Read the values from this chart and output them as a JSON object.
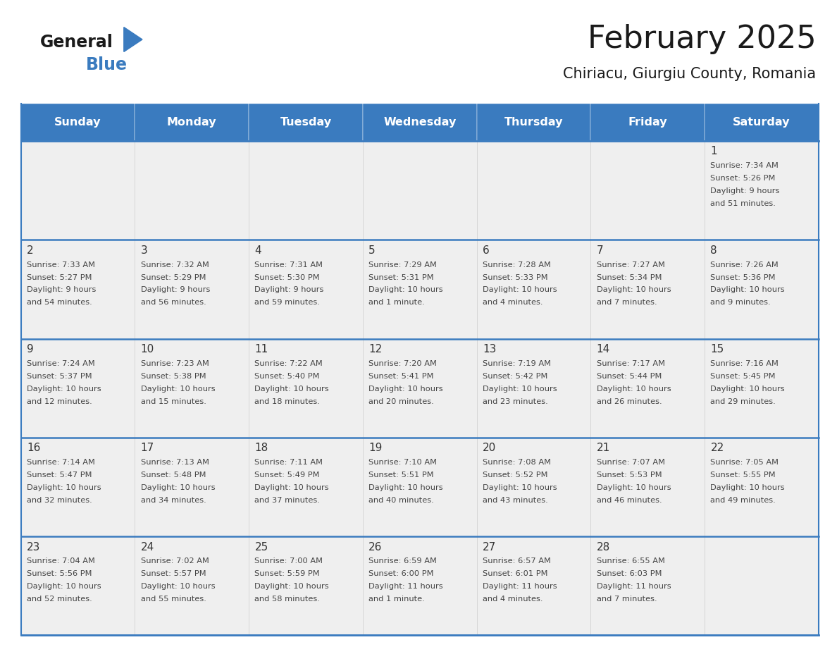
{
  "title": "February 2025",
  "subtitle": "Chiriacu, Giurgiu County, Romania",
  "header_color": "#3A7BBF",
  "header_text_color": "#FFFFFF",
  "cell_bg_color": "#EFEFEF",
  "border_color": "#3A7BBF",
  "title_color": "#1a1a1a",
  "subtitle_color": "#1a1a1a",
  "days_of_week": [
    "Sunday",
    "Monday",
    "Tuesday",
    "Wednesday",
    "Thursday",
    "Friday",
    "Saturday"
  ],
  "calendar_data": [
    [
      null,
      null,
      null,
      null,
      null,
      null,
      {
        "day": 1,
        "sunrise": "7:34 AM",
        "sunset": "5:26 PM",
        "daylight_line1": "9 hours",
        "daylight_line2": "and 51 minutes."
      }
    ],
    [
      {
        "day": 2,
        "sunrise": "7:33 AM",
        "sunset": "5:27 PM",
        "daylight_line1": "9 hours",
        "daylight_line2": "and 54 minutes."
      },
      {
        "day": 3,
        "sunrise": "7:32 AM",
        "sunset": "5:29 PM",
        "daylight_line1": "9 hours",
        "daylight_line2": "and 56 minutes."
      },
      {
        "day": 4,
        "sunrise": "7:31 AM",
        "sunset": "5:30 PM",
        "daylight_line1": "9 hours",
        "daylight_line2": "and 59 minutes."
      },
      {
        "day": 5,
        "sunrise": "7:29 AM",
        "sunset": "5:31 PM",
        "daylight_line1": "10 hours",
        "daylight_line2": "and 1 minute."
      },
      {
        "day": 6,
        "sunrise": "7:28 AM",
        "sunset": "5:33 PM",
        "daylight_line1": "10 hours",
        "daylight_line2": "and 4 minutes."
      },
      {
        "day": 7,
        "sunrise": "7:27 AM",
        "sunset": "5:34 PM",
        "daylight_line1": "10 hours",
        "daylight_line2": "and 7 minutes."
      },
      {
        "day": 8,
        "sunrise": "7:26 AM",
        "sunset": "5:36 PM",
        "daylight_line1": "10 hours",
        "daylight_line2": "and 9 minutes."
      }
    ],
    [
      {
        "day": 9,
        "sunrise": "7:24 AM",
        "sunset": "5:37 PM",
        "daylight_line1": "10 hours",
        "daylight_line2": "and 12 minutes."
      },
      {
        "day": 10,
        "sunrise": "7:23 AM",
        "sunset": "5:38 PM",
        "daylight_line1": "10 hours",
        "daylight_line2": "and 15 minutes."
      },
      {
        "day": 11,
        "sunrise": "7:22 AM",
        "sunset": "5:40 PM",
        "daylight_line1": "10 hours",
        "daylight_line2": "and 18 minutes."
      },
      {
        "day": 12,
        "sunrise": "7:20 AM",
        "sunset": "5:41 PM",
        "daylight_line1": "10 hours",
        "daylight_line2": "and 20 minutes."
      },
      {
        "day": 13,
        "sunrise": "7:19 AM",
        "sunset": "5:42 PM",
        "daylight_line1": "10 hours",
        "daylight_line2": "and 23 minutes."
      },
      {
        "day": 14,
        "sunrise": "7:17 AM",
        "sunset": "5:44 PM",
        "daylight_line1": "10 hours",
        "daylight_line2": "and 26 minutes."
      },
      {
        "day": 15,
        "sunrise": "7:16 AM",
        "sunset": "5:45 PM",
        "daylight_line1": "10 hours",
        "daylight_line2": "and 29 minutes."
      }
    ],
    [
      {
        "day": 16,
        "sunrise": "7:14 AM",
        "sunset": "5:47 PM",
        "daylight_line1": "10 hours",
        "daylight_line2": "and 32 minutes."
      },
      {
        "day": 17,
        "sunrise": "7:13 AM",
        "sunset": "5:48 PM",
        "daylight_line1": "10 hours",
        "daylight_line2": "and 34 minutes."
      },
      {
        "day": 18,
        "sunrise": "7:11 AM",
        "sunset": "5:49 PM",
        "daylight_line1": "10 hours",
        "daylight_line2": "and 37 minutes."
      },
      {
        "day": 19,
        "sunrise": "7:10 AM",
        "sunset": "5:51 PM",
        "daylight_line1": "10 hours",
        "daylight_line2": "and 40 minutes."
      },
      {
        "day": 20,
        "sunrise": "7:08 AM",
        "sunset": "5:52 PM",
        "daylight_line1": "10 hours",
        "daylight_line2": "and 43 minutes."
      },
      {
        "day": 21,
        "sunrise": "7:07 AM",
        "sunset": "5:53 PM",
        "daylight_line1": "10 hours",
        "daylight_line2": "and 46 minutes."
      },
      {
        "day": 22,
        "sunrise": "7:05 AM",
        "sunset": "5:55 PM",
        "daylight_line1": "10 hours",
        "daylight_line2": "and 49 minutes."
      }
    ],
    [
      {
        "day": 23,
        "sunrise": "7:04 AM",
        "sunset": "5:56 PM",
        "daylight_line1": "10 hours",
        "daylight_line2": "and 52 minutes."
      },
      {
        "day": 24,
        "sunrise": "7:02 AM",
        "sunset": "5:57 PM",
        "daylight_line1": "10 hours",
        "daylight_line2": "and 55 minutes."
      },
      {
        "day": 25,
        "sunrise": "7:00 AM",
        "sunset": "5:59 PM",
        "daylight_line1": "10 hours",
        "daylight_line2": "and 58 minutes."
      },
      {
        "day": 26,
        "sunrise": "6:59 AM",
        "sunset": "6:00 PM",
        "daylight_line1": "11 hours",
        "daylight_line2": "and 1 minute."
      },
      {
        "day": 27,
        "sunrise": "6:57 AM",
        "sunset": "6:01 PM",
        "daylight_line1": "11 hours",
        "daylight_line2": "and 4 minutes."
      },
      {
        "day": 28,
        "sunrise": "6:55 AM",
        "sunset": "6:03 PM",
        "daylight_line1": "11 hours",
        "daylight_line2": "and 7 minutes."
      },
      null
    ]
  ],
  "logo_general_color": "#1a1a1a",
  "logo_blue_color": "#3A7BBF",
  "logo_triangle_color": "#3A7BBF"
}
